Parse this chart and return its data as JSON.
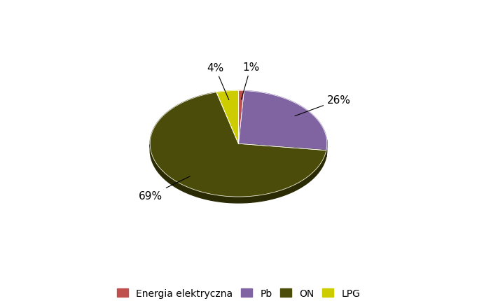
{
  "labels": [
    "Energia elektryczna",
    "Pb",
    "ON",
    "LPG"
  ],
  "values": [
    1,
    26,
    69,
    4
  ],
  "colors": [
    "#C0504D",
    "#8064A2",
    "#4B4C0A",
    "#CCCC00"
  ],
  "dark_colors": [
    "#7B2C29",
    "#4B3A61",
    "#2A2B04",
    "#8A8A00"
  ],
  "shadow_color": "#1A1A00",
  "figsize": [
    6.81,
    4.31
  ],
  "dpi": 100,
  "background_color": "#FFFFFF",
  "legend_fontsize": 10,
  "pct_fontsize": 11,
  "depth": 0.12
}
